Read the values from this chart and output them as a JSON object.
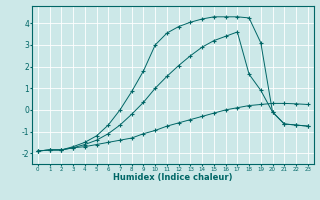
{
  "xlabel": "Humidex (Indice chaleur)",
  "bg_color": "#cce8e8",
  "grid_color": "#ffffff",
  "line_color": "#006666",
  "xlim": [
    -0.5,
    23.5
  ],
  "ylim": [
    -2.5,
    4.8
  ],
  "xticks": [
    0,
    1,
    2,
    3,
    4,
    5,
    6,
    7,
    8,
    9,
    10,
    11,
    12,
    13,
    14,
    15,
    16,
    17,
    18,
    19,
    20,
    21,
    22,
    23
  ],
  "yticks": [
    -2,
    -1,
    0,
    1,
    2,
    3,
    4
  ],
  "line1_x": [
    0,
    1,
    2,
    3,
    4,
    5,
    6,
    7,
    8,
    9,
    10,
    11,
    12,
    13,
    14,
    15,
    16,
    17,
    18,
    19,
    20,
    21,
    22,
    23
  ],
  "line1_y": [
    -1.9,
    -1.85,
    -1.85,
    -1.75,
    -1.7,
    -1.6,
    -1.5,
    -1.4,
    -1.3,
    -1.1,
    -0.95,
    -0.75,
    -0.6,
    -0.45,
    -0.3,
    -0.15,
    0.0,
    0.1,
    0.2,
    0.25,
    0.3,
    0.3,
    0.28,
    0.25
  ],
  "line2_x": [
    0,
    1,
    2,
    3,
    4,
    5,
    6,
    7,
    8,
    9,
    10,
    11,
    12,
    13,
    14,
    15,
    16,
    17,
    18,
    19,
    20,
    21,
    22,
    23
  ],
  "line2_y": [
    -1.9,
    -1.85,
    -1.85,
    -1.7,
    -1.5,
    -1.2,
    -0.7,
    0.0,
    0.85,
    1.8,
    3.0,
    3.55,
    3.85,
    4.05,
    4.2,
    4.3,
    4.3,
    4.3,
    4.25,
    3.1,
    -0.1,
    -0.65,
    -0.7,
    -0.75
  ],
  "line3_x": [
    0,
    1,
    2,
    3,
    4,
    5,
    6,
    7,
    8,
    9,
    10,
    11,
    12,
    13,
    14,
    15,
    16,
    17,
    18,
    19,
    20,
    21,
    22,
    23
  ],
  "line3_y": [
    -1.9,
    -1.85,
    -1.85,
    -1.75,
    -1.6,
    -1.4,
    -1.1,
    -0.7,
    -0.2,
    0.35,
    1.0,
    1.55,
    2.05,
    2.5,
    2.9,
    3.2,
    3.4,
    3.6,
    1.65,
    0.9,
    -0.1,
    -0.65,
    -0.7,
    -0.75
  ]
}
